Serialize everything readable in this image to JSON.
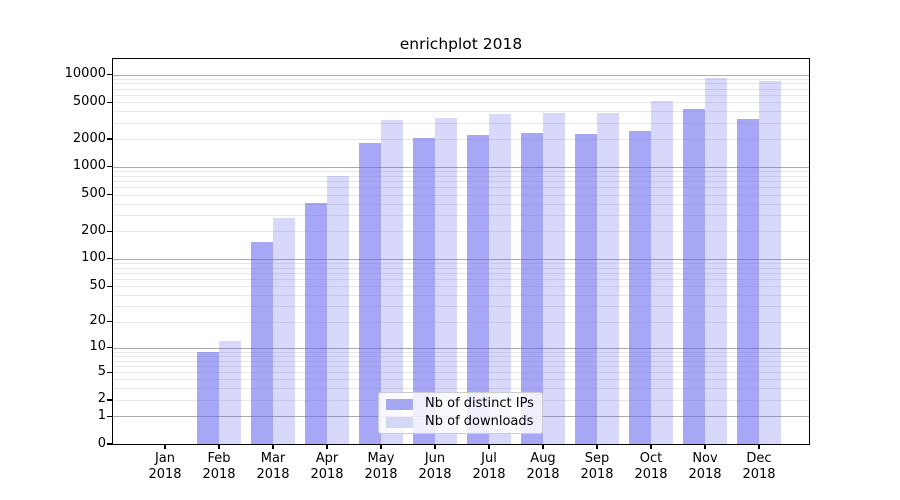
{
  "title": "enrichplot 2018",
  "chart_data": {
    "type": "bar",
    "title": "enrichplot 2018",
    "scale": "log10(value+1)",
    "ylim": [
      0,
      14700
    ],
    "grid": "on",
    "legend_position": "lower-center",
    "months": [
      "Jan",
      "Feb",
      "Mar",
      "Apr",
      "May",
      "Jun",
      "Jul",
      "Aug",
      "Sep",
      "Oct",
      "Nov",
      "Dec"
    ],
    "year_label": "2018",
    "categories": [
      "Jan 2018",
      "Feb 2018",
      "Mar 2018",
      "Apr 2018",
      "May 2018",
      "Jun 2018",
      "Jul 2018",
      "Aug 2018",
      "Sep 2018",
      "Oct 2018",
      "Nov 2018",
      "Dec 2018"
    ],
    "series": [
      {
        "name": "Nb of distinct IPs",
        "key": "ips",
        "values": [
          0,
          9,
          152,
          408,
          1816,
          2057,
          2218,
          2333,
          2276,
          2448,
          4232,
          3296
        ]
      },
      {
        "name": "Nb of downloads",
        "key": "downloads",
        "values": [
          0,
          12,
          276,
          803,
          3221,
          3388,
          3742,
          3837,
          3840,
          5167,
          9166,
          8505
        ]
      }
    ],
    "y_tick_labels": [
      "0",
      "1",
      "2",
      "5",
      "10",
      "20",
      "50",
      "100",
      "200",
      "500",
      "1000",
      "2000",
      "5000",
      "10000"
    ],
    "y_tick_values": [
      0,
      1,
      2,
      5,
      10,
      20,
      50,
      100,
      200,
      500,
      1000,
      2000,
      5000,
      10000
    ]
  },
  "legend": {
    "items": [
      {
        "label": "Nb of distinct IPs",
        "key": "ips"
      },
      {
        "label": "Nb of downloads",
        "key": "downloads"
      }
    ]
  },
  "colors": {
    "bar_base": "#6262ee",
    "ips_alpha": 0.56,
    "downloads_alpha": 0.25,
    "ips_solid": "#a7a7f1",
    "downloads_solid": "#d6d6f6",
    "grid_major": "#ababab",
    "grid_minor": "#e8e8e8",
    "axis": "#000000",
    "background": "#ffffff"
  }
}
